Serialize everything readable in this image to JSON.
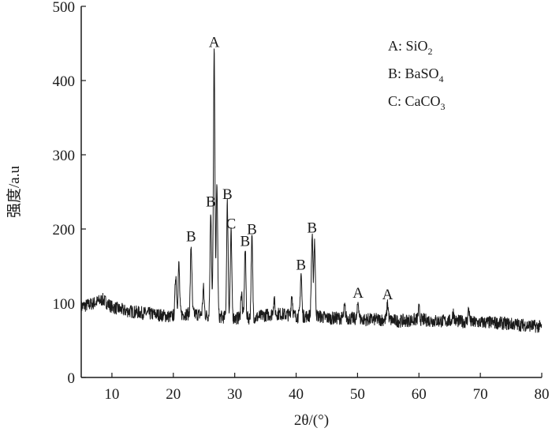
{
  "chart_data": {
    "type": "line",
    "title": "",
    "xlabel": "2θ/(°)",
    "ylabel": "强度/a.u",
    "xlim": [
      5,
      80
    ],
    "ylim": [
      0,
      500
    ],
    "xticks": [
      10,
      20,
      30,
      40,
      50,
      60,
      70,
      80
    ],
    "yticks": [
      0,
      100,
      200,
      300,
      400,
      500
    ],
    "grid": false,
    "legend_position": "top-right",
    "legend": [
      {
        "key": "A",
        "sep": ": ",
        "formula": "SiO",
        "sub": "2"
      },
      {
        "key": "B",
        "sep": ": ",
        "formula": "BaSO",
        "sub": "4"
      },
      {
        "key": "C",
        "sep": ": ",
        "formula": "CaCO",
        "sub": "3"
      }
    ],
    "baseline": [
      [
        5,
        95
      ],
      [
        7,
        100
      ],
      [
        8.5,
        105
      ],
      [
        10,
        95
      ],
      [
        12,
        90
      ],
      [
        14,
        88
      ],
      [
        16,
        86
      ],
      [
        18,
        84
      ],
      [
        19.5,
        82
      ],
      [
        21,
        85
      ],
      [
        23,
        86
      ],
      [
        25,
        84
      ],
      [
        27,
        82
      ],
      [
        30,
        80
      ],
      [
        33,
        80
      ],
      [
        35,
        84
      ],
      [
        37,
        86
      ],
      [
        39,
        84
      ],
      [
        41,
        82
      ],
      [
        43,
        84
      ],
      [
        45,
        80
      ],
      [
        48,
        80
      ],
      [
        51,
        78
      ],
      [
        54,
        78
      ],
      [
        57,
        76
      ],
      [
        60,
        78
      ],
      [
        63,
        76
      ],
      [
        66,
        76
      ],
      [
        69,
        74
      ],
      [
        72,
        74
      ],
      [
        75,
        72
      ],
      [
        78,
        70
      ],
      [
        80,
        68
      ]
    ],
    "peaks": [
      {
        "x": 20.4,
        "y": 140,
        "label": ""
      },
      {
        "x": 20.9,
        "y": 152,
        "label": ""
      },
      {
        "x": 22.9,
        "y": 178,
        "label": "B"
      },
      {
        "x": 24.9,
        "y": 120,
        "label": ""
      },
      {
        "x": 26.1,
        "y": 225,
        "label": "B"
      },
      {
        "x": 26.65,
        "y": 440,
        "label": "A"
      },
      {
        "x": 27.1,
        "y": 258,
        "label": ""
      },
      {
        "x": 28.8,
        "y": 235,
        "label": "B"
      },
      {
        "x": 29.4,
        "y": 195,
        "label": "C"
      },
      {
        "x": 31.1,
        "y": 115,
        "label": ""
      },
      {
        "x": 31.7,
        "y": 172,
        "label": "B"
      },
      {
        "x": 32.8,
        "y": 188,
        "label": "B"
      },
      {
        "x": 36.4,
        "y": 105,
        "label": ""
      },
      {
        "x": 39.3,
        "y": 112,
        "label": ""
      },
      {
        "x": 40.8,
        "y": 140,
        "label": "B"
      },
      {
        "x": 42.6,
        "y": 190,
        "label": "B"
      },
      {
        "x": 43.0,
        "y": 185,
        "label": ""
      },
      {
        "x": 47.9,
        "y": 95,
        "label": ""
      },
      {
        "x": 50.1,
        "y": 102,
        "label": "A"
      },
      {
        "x": 54.9,
        "y": 100,
        "label": "A"
      },
      {
        "x": 60.0,
        "y": 92,
        "label": ""
      },
      {
        "x": 65.6,
        "y": 88,
        "label": ""
      },
      {
        "x": 68.1,
        "y": 92,
        "label": ""
      }
    ]
  }
}
